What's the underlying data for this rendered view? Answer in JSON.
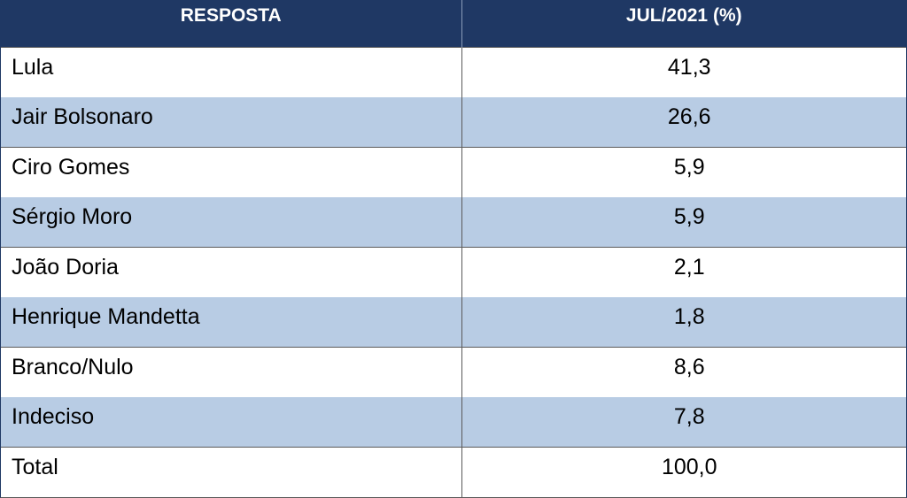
{
  "colors": {
    "header_bg": "#1f3864",
    "header_text": "#ffffff",
    "stripe": "#b8cce4",
    "row": "#ffffff"
  },
  "chart_data": {
    "type": "table",
    "columns": [
      "RESPOSTA",
      "JUL/2021 (%)"
    ],
    "rows": [
      {
        "label": "Lula",
        "value": "41,3"
      },
      {
        "label": "Jair Bolsonaro",
        "value": "26,6"
      },
      {
        "label": "Ciro Gomes",
        "value": "5,9"
      },
      {
        "label": "Sérgio Moro",
        "value": "5,9"
      },
      {
        "label": "João Doria",
        "value": "2,1"
      },
      {
        "label": "Henrique Mandetta",
        "value": "1,8"
      },
      {
        "label": "Branco/Nulo",
        "value": "8,6"
      },
      {
        "label": "Indeciso",
        "value": "7,8"
      },
      {
        "label": "Total",
        "value": "100,0"
      }
    ]
  }
}
